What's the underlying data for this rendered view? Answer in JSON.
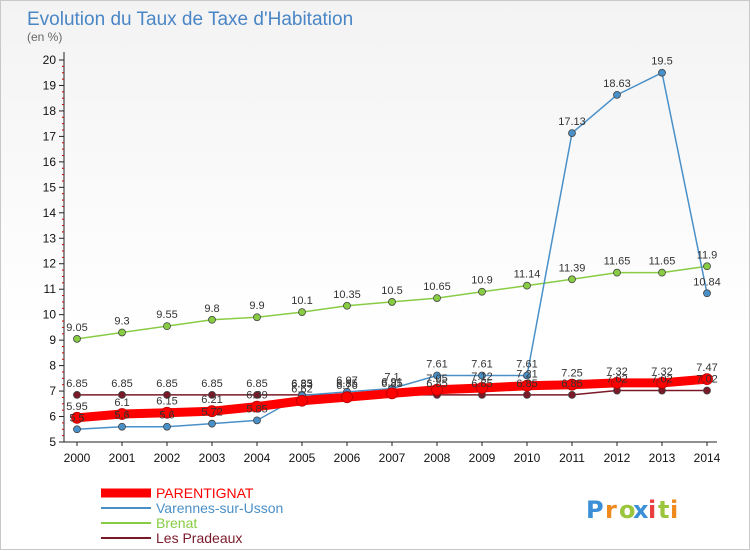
{
  "chart_data": {
    "type": "line",
    "title": "Evolution du Taux de Taxe d'Habitation",
    "subtitle": "(en %)",
    "x": [
      "2000",
      "2001",
      "2002",
      "2003",
      "2004",
      "2005",
      "2006",
      "2007",
      "2008",
      "2009",
      "2010",
      "2011",
      "2012",
      "2013",
      "2014"
    ],
    "ylim": [
      5,
      20
    ],
    "yticks": [
      5,
      6,
      7,
      8,
      9,
      10,
      11,
      12,
      13,
      14,
      15,
      16,
      17,
      18,
      19,
      20
    ],
    "grid": false,
    "legend_position": "bottom-left",
    "series": [
      {
        "name": "PARENTIGNAT",
        "color": "#ff0000",
        "values": [
          5.95,
          6.1,
          6.15,
          6.21,
          6.39,
          6.62,
          6.76,
          6.91,
          7.05,
          7.12,
          7.21,
          7.25,
          7.32,
          7.32,
          7.47
        ],
        "labels": [
          "5.95",
          "6.1",
          "6.15",
          "6.21",
          "6.39",
          "6.62",
          "6.76",
          "6.91",
          "7.05",
          "7.12",
          "7.21",
          "7.25",
          "7.32",
          "7.32",
          "7.47"
        ]
      },
      {
        "name": "Varennes-sur-Usson",
        "color": "#4a90c8",
        "values": [
          5.5,
          5.6,
          5.6,
          5.72,
          5.85,
          6.83,
          6.97,
          7.1,
          7.61,
          7.61,
          7.61,
          17.13,
          18.63,
          19.5,
          10.84
        ],
        "labels": [
          "5.5",
          "5.6",
          "5.6",
          "5.72",
          "5.85",
          "6.83",
          "6.97",
          "7.1",
          "7.61",
          "7.61",
          "7.61",
          "17.13",
          "18.63",
          "19.5",
          "10.84"
        ]
      },
      {
        "name": "Brenat",
        "color": "#88cc44",
        "values": [
          9.05,
          9.3,
          9.55,
          9.8,
          9.9,
          10.1,
          10.35,
          10.5,
          10.65,
          10.9,
          11.14,
          11.39,
          11.65,
          11.65,
          11.9
        ],
        "labels": [
          "9.05",
          "9.3",
          "9.55",
          "9.8",
          "9.9",
          "10.1",
          "10.35",
          "10.5",
          "10.65",
          "10.9",
          "11.14",
          "11.39",
          "11.65",
          "11.65",
          "11.9"
        ]
      },
      {
        "name": "Les Pradeaux",
        "color": "#7a1a28",
        "values": [
          6.85,
          6.85,
          6.85,
          6.85,
          6.85,
          6.85,
          6.85,
          6.85,
          6.85,
          6.85,
          6.85,
          6.85,
          7.02,
          7.02,
          7.02
        ],
        "labels": [
          "6.85",
          "6.85",
          "6.85",
          "6.85",
          "6.85",
          "6.85",
          "6.85",
          "6.85",
          "6.85",
          "6.85",
          "6.85",
          "6.85",
          "7.02",
          "7.02",
          "7.02"
        ]
      }
    ]
  },
  "logo": {
    "text": "Proxiti",
    "colors": [
      "#3a8fd6",
      "#f08a1c",
      "#9bc53d",
      "#3a8fd6",
      "#e83e3e",
      "#9bc53d",
      "#f08a1c"
    ]
  }
}
